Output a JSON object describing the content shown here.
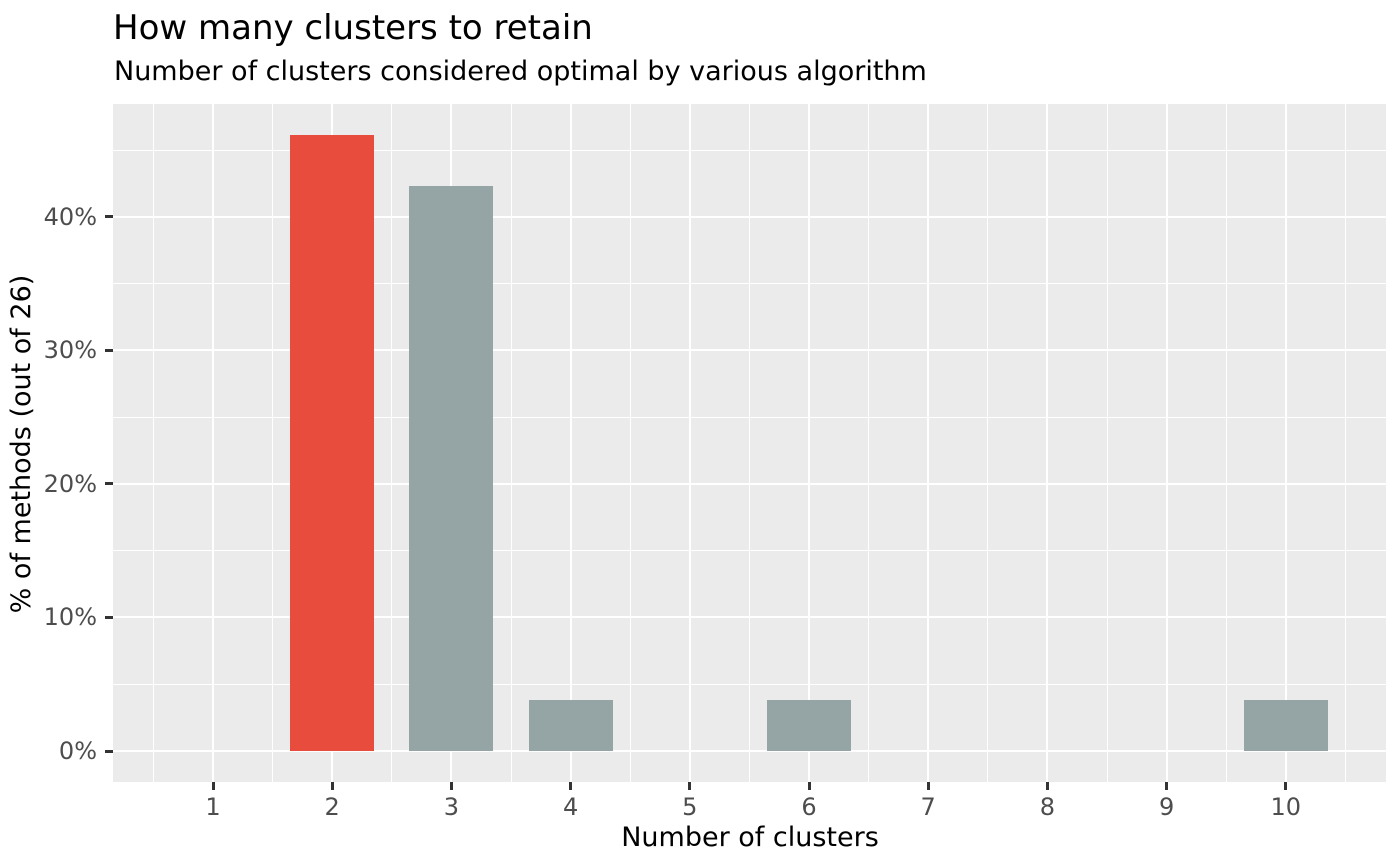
{
  "chart_data": {
    "type": "bar",
    "title": "How many clusters to retain",
    "subtitle": "Number of clusters considered optimal by various algorithm",
    "xlabel": "Number of clusters",
    "ylabel": "% of methods (out of 26)",
    "categories": [
      "1",
      "2",
      "3",
      "4",
      "5",
      "6",
      "7",
      "8",
      "9",
      "10"
    ],
    "values_percent": [
      0,
      46.15,
      42.31,
      3.85,
      0,
      3.85,
      0,
      0,
      0,
      3.85
    ],
    "method_counts_out_of_26": [
      0,
      12,
      11,
      1,
      0,
      1,
      0,
      0,
      0,
      1
    ],
    "highlighted_category": "2",
    "y_tick_labels": [
      "0%",
      "10%",
      "20%",
      "30%",
      "40%"
    ],
    "y_tick_values": [
      0,
      10,
      20,
      30,
      40
    ],
    "y_minor_values": [
      5,
      15,
      25,
      35,
      45
    ],
    "ylim": [
      0,
      48.4
    ],
    "grid": true,
    "legend_position": "none",
    "colors": {
      "highlight_bar": "#E74C3C",
      "default_bar": "#95A5A5",
      "panel_background": "#EBEBEB",
      "gridline": "#FFFFFF",
      "tick_label": "#4D4D4D",
      "tick_mark": "#333333",
      "text": "#000000"
    }
  }
}
